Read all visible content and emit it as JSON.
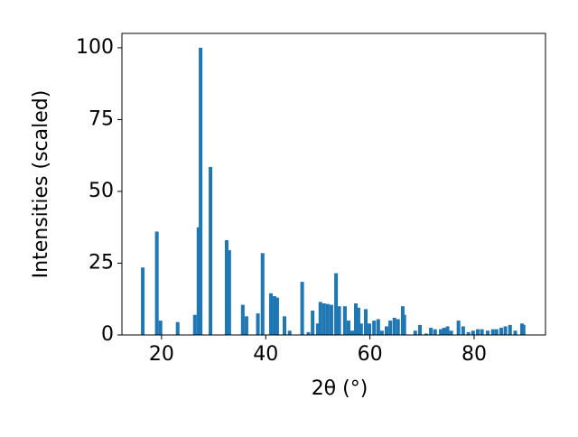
{
  "chart_data": {
    "type": "bar",
    "xlabel": "2θ (°)",
    "ylabel": "Intensities (scaled)",
    "color": "#1f77b4",
    "x": [
      16.4,
      19.1,
      19.8,
      23.1,
      26.4,
      27.1,
      27.5,
      29.4,
      32.5,
      33.0,
      35.6,
      36.3,
      38.5,
      39.4,
      41.0,
      41.7,
      42.2,
      43.6,
      44.6,
      47.0,
      48.2,
      49.0,
      50.0,
      50.5,
      51.2,
      51.9,
      52.6,
      53.5,
      54.1,
      55.2,
      55.9,
      56.6,
      57.3,
      57.8,
      58.3,
      59.2,
      59.9,
      60.8,
      61.6,
      62.3,
      63.2,
      63.9,
      64.7,
      65.4,
      66.3,
      66.6,
      68.7,
      69.6,
      70.8,
      71.7,
      72.5,
      73.6,
      74.2,
      74.9,
      75.6,
      77.0,
      77.9,
      78.9,
      79.8,
      80.7,
      81.5,
      82.6,
      83.6,
      84.3,
      85.2,
      86.0,
      86.9,
      87.9,
      89.2,
      89.5
    ],
    "values": [
      23.5,
      36,
      5,
      4.5,
      7,
      37.5,
      100,
      58.5,
      33,
      29.5,
      10.5,
      6.5,
      7.5,
      28.5,
      14.5,
      13.5,
      13,
      6.5,
      1.5,
      18.5,
      1,
      8.5,
      4,
      11.5,
      11,
      10.8,
      10.5,
      21.5,
      10,
      10,
      5,
      1.5,
      11,
      9.5,
      4,
      9,
      4,
      5,
      5.5,
      1.5,
      3,
      5,
      6,
      5.5,
      10,
      7,
      1.5,
      3.5,
      0.5,
      2.5,
      2,
      2,
      2.5,
      3,
      1.5,
      5,
      3,
      1,
      1.5,
      2,
      2,
      1.5,
      2,
      2,
      2.5,
      3,
      3.5,
      1.5,
      4,
      3.5
    ],
    "xlim": [
      12.4,
      93.7
    ],
    "ylim": [
      0,
      105
    ],
    "xticks": [
      20,
      40,
      60,
      80
    ],
    "yticks": [
      0,
      25,
      50,
      75,
      100
    ]
  }
}
